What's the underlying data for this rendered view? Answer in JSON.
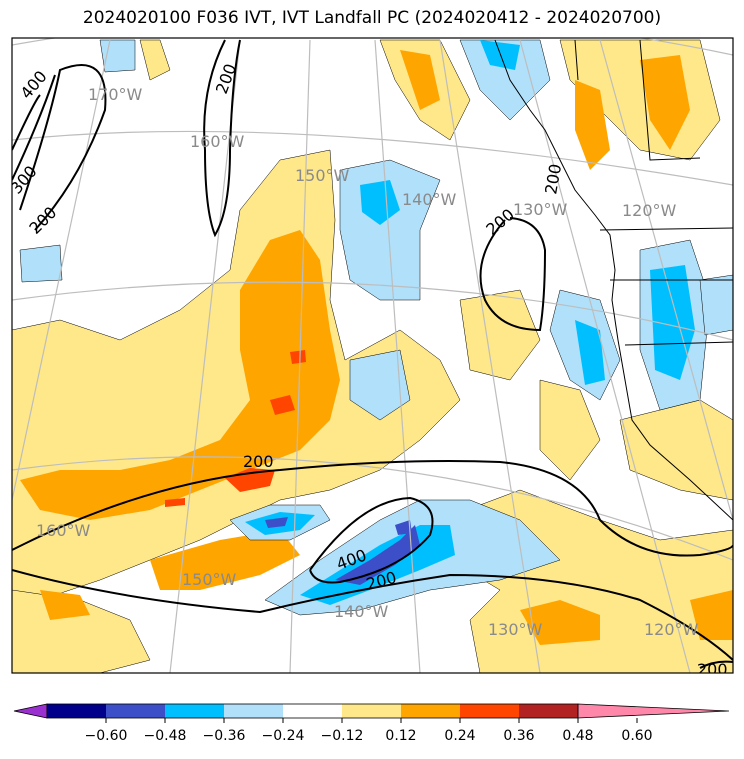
{
  "title": "2024020100 F036 IVT, IVT Landfall PC (2024020412 - 2024020700)",
  "longitude_labels": [
    {
      "text": "170°W"
    },
    {
      "text": "160°W"
    },
    {
      "text": "150°W"
    },
    {
      "text": "140°W"
    },
    {
      "text": "130°W"
    },
    {
      "text": "120°W"
    },
    {
      "text": "160°W"
    },
    {
      "text": "150°W"
    },
    {
      "text": "140°W"
    },
    {
      "text": "130°W"
    },
    {
      "text": "120°W"
    }
  ],
  "contour_labels": [
    {
      "text": "400"
    },
    {
      "text": "200"
    },
    {
      "text": "300"
    },
    {
      "text": "200"
    },
    {
      "text": "200"
    },
    {
      "text": "200"
    },
    {
      "text": "200"
    },
    {
      "text": "400"
    },
    {
      "text": "200"
    },
    {
      "text": "200"
    }
  ],
  "colorbar": {
    "ticks": [
      "−0.60",
      "−0.48",
      "−0.36",
      "−0.24",
      "−0.12",
      "0.12",
      "0.24",
      "0.36",
      "0.48",
      "0.60"
    ],
    "colors": [
      "#9b30d0",
      "#00008b",
      "#3c4fc8",
      "#00bfff",
      "#b0e0fa",
      "#ffffff",
      "#ffe88a",
      "#ffa500",
      "#ff4500",
      "#b22222",
      "#ff88aa"
    ]
  }
}
